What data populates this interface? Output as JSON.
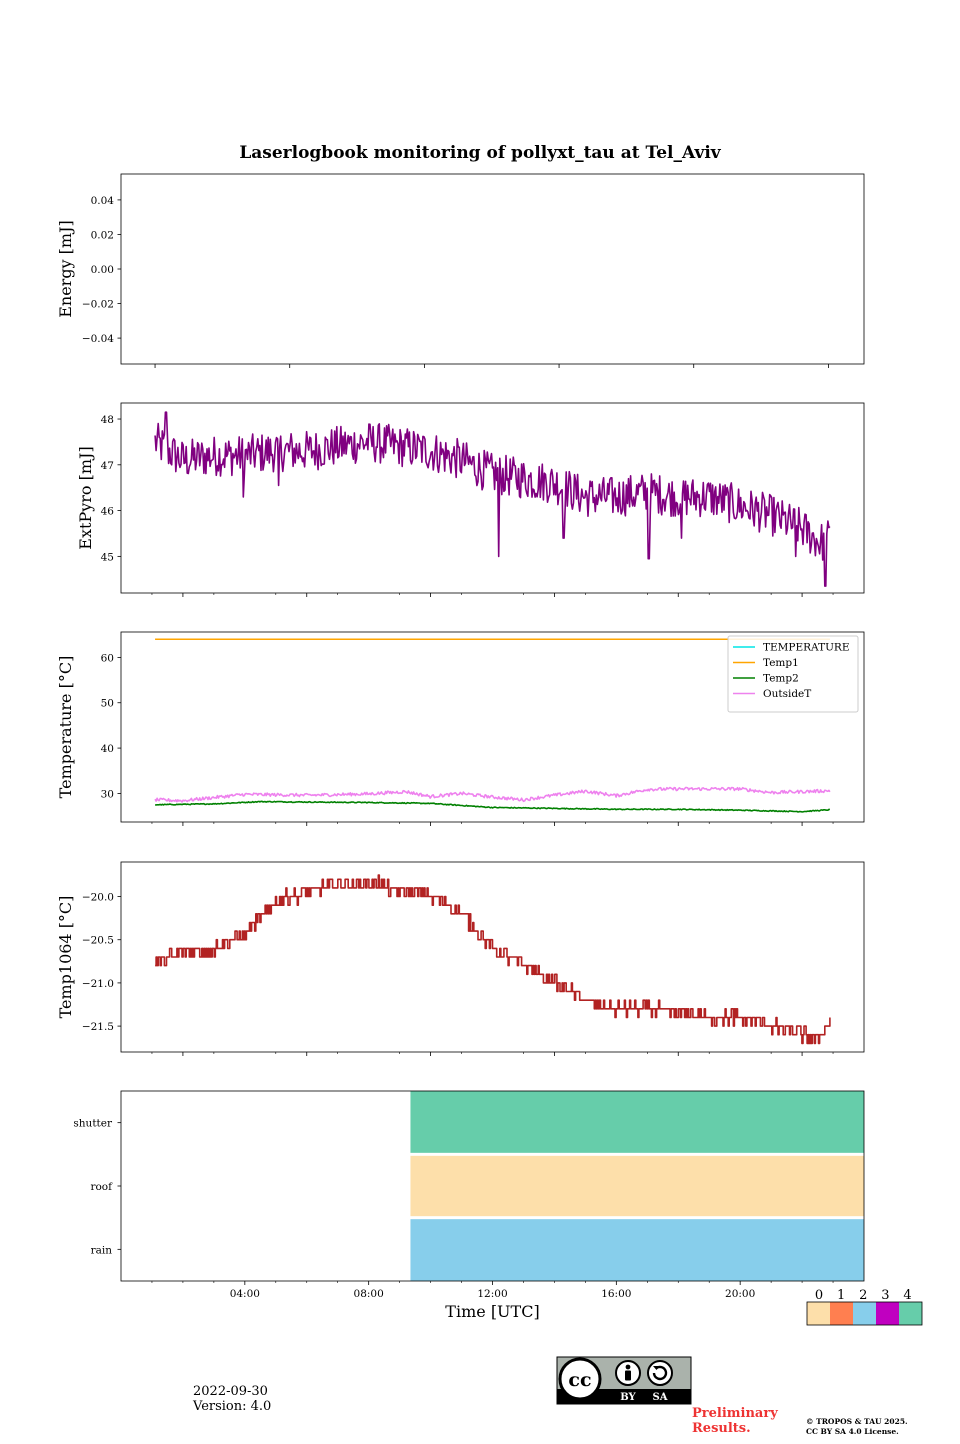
{
  "title": "Laserlogbook monitoring of pollyxt_tau at Tel_Aviv",
  "footer": {
    "date": "2022-09-30",
    "version": "Version: 4.0",
    "preliminary_line1": "Preliminary",
    "preliminary_line2": "Results.",
    "copyright_line1": "© TROPOS & TAU 2025.",
    "copyright_line2": "CC BY SA 4.0 License.",
    "license_badge": {
      "icon": "cc-by-sa-icon",
      "labels": [
        "BY",
        "SA"
      ]
    }
  },
  "chart_data": [
    {
      "type": "line",
      "ylabel": "Energy [mJ]",
      "ylim": [
        -0.055,
        0.055
      ],
      "yticks": [
        "0.04",
        "0.02",
        "0.00",
        "−0.02",
        "−0.04"
      ],
      "ytick_values": [
        0.04,
        0.02,
        0.0,
        -0.02,
        -0.04
      ],
      "series": []
    },
    {
      "type": "line",
      "ylabel": "ExtPyro [mJ]",
      "ylim": [
        44.2,
        48.35
      ],
      "yticks": [
        "48",
        "47",
        "46",
        "45"
      ],
      "ytick_values": [
        48,
        47,
        46,
        45
      ],
      "x_range_hours": [
        1.1,
        22.9
      ],
      "series": [
        {
          "color": "#800080",
          "profile": [
            [
              1.1,
              47.5
            ],
            [
              2.0,
              47.1
            ],
            [
              3.0,
              47.2
            ],
            [
              4.0,
              47.2
            ],
            [
              5.0,
              47.3
            ],
            [
              6.0,
              47.3
            ],
            [
              7.0,
              47.4
            ],
            [
              8.0,
              47.5
            ],
            [
              9.0,
              47.4
            ],
            [
              10.0,
              47.3
            ],
            [
              11.0,
              47.1
            ],
            [
              12.0,
              46.8
            ],
            [
              13.0,
              46.7
            ],
            [
              14.0,
              46.6
            ],
            [
              15.0,
              46.3
            ],
            [
              16.0,
              46.3
            ],
            [
              17.0,
              46.4
            ],
            [
              18.0,
              46.3
            ],
            [
              19.0,
              46.3
            ],
            [
              20.0,
              46.1
            ],
            [
              21.0,
              45.9
            ],
            [
              22.0,
              45.6
            ],
            [
              22.6,
              45.3
            ],
            [
              22.9,
              45.4
            ]
          ],
          "noise": 0.45,
          "spikes": [
            [
              1.45,
              48.15
            ],
            [
              3.95,
              46.3
            ],
            [
              5.1,
              46.55
            ],
            [
              12.2,
              45.0
            ],
            [
              14.3,
              45.4
            ],
            [
              17.05,
              44.95
            ],
            [
              18.1,
              45.4
            ],
            [
              21.8,
              45.0
            ],
            [
              22.75,
              44.35
            ]
          ]
        }
      ]
    },
    {
      "type": "line",
      "ylabel": "Temperature [°C]",
      "ylim": [
        23.7,
        65.6
      ],
      "yticks": [
        "60",
        "50",
        "40",
        "30"
      ],
      "ytick_values": [
        60,
        50,
        40,
        30
      ],
      "x_range_hours": [
        1.1,
        22.9
      ],
      "legend_position": "top-right",
      "series": [
        {
          "name": "TEMPERATURE",
          "color": "#00e5e5",
          "values": []
        },
        {
          "name": "Temp1",
          "color": "#ffa500",
          "constant": 64.0
        },
        {
          "name": "Temp2",
          "color": "#008000",
          "profile": [
            [
              1.1,
              27.5
            ],
            [
              3.0,
              27.7
            ],
            [
              4.5,
              28.2
            ],
            [
              6.0,
              28.1
            ],
            [
              8.0,
              28.0
            ],
            [
              10.0,
              27.8
            ],
            [
              12.0,
              26.9
            ],
            [
              14.0,
              26.7
            ],
            [
              16.0,
              26.5
            ],
            [
              18.0,
              26.5
            ],
            [
              20.0,
              26.3
            ],
            [
              22.0,
              26.0
            ],
            [
              22.9,
              26.4
            ]
          ],
          "noise": 0.1
        },
        {
          "name": "OutsideT",
          "color": "#ee82ee",
          "profile": [
            [
              1.1,
              28.6
            ],
            [
              2.0,
              28.4
            ],
            [
              4.0,
              29.8
            ],
            [
              6.0,
              29.6
            ],
            [
              8.0,
              29.9
            ],
            [
              9.2,
              30.4
            ],
            [
              10.0,
              29.3
            ],
            [
              11.0,
              30.0
            ],
            [
              12.0,
              29.2
            ],
            [
              13.0,
              28.6
            ],
            [
              14.0,
              29.6
            ],
            [
              15.0,
              30.5
            ],
            [
              16.0,
              29.5
            ],
            [
              17.0,
              30.9
            ],
            [
              18.0,
              31.0
            ],
            [
              20.0,
              31.0
            ],
            [
              21.0,
              30.2
            ],
            [
              22.0,
              30.4
            ],
            [
              22.9,
              30.6
            ]
          ],
          "noise": 0.35
        }
      ]
    },
    {
      "type": "line",
      "ylabel": "Temp1064 [°C]",
      "ylim": [
        -21.8,
        -19.6
      ],
      "yticks": [
        "−20.0",
        "−20.5",
        "−21.0",
        "−21.5"
      ],
      "ytick_values": [
        -20.0,
        -20.5,
        -21.0,
        -21.5
      ],
      "x_range_hours": [
        1.1,
        22.9
      ],
      "series": [
        {
          "color": "#b22222",
          "step": 0.1,
          "profile": [
            [
              1.1,
              -20.75
            ],
            [
              2.0,
              -20.65
            ],
            [
              3.0,
              -20.6
            ],
            [
              4.0,
              -20.45
            ],
            [
              5.0,
              -20.05
            ],
            [
              6.0,
              -19.95
            ],
            [
              7.0,
              -19.85
            ],
            [
              8.0,
              -19.85
            ],
            [
              9.0,
              -19.95
            ],
            [
              10.0,
              -20.0
            ],
            [
              11.0,
              -20.2
            ],
            [
              12.0,
              -20.6
            ],
            [
              13.0,
              -20.8
            ],
            [
              14.0,
              -21.0
            ],
            [
              15.0,
              -21.2
            ],
            [
              16.0,
              -21.3
            ],
            [
              17.0,
              -21.3
            ],
            [
              18.0,
              -21.35
            ],
            [
              19.0,
              -21.4
            ],
            [
              20.0,
              -21.4
            ],
            [
              21.0,
              -21.5
            ],
            [
              22.0,
              -21.6
            ],
            [
              22.5,
              -21.65
            ],
            [
              22.9,
              -21.45
            ]
          ],
          "noise": 0.07,
          "spikes": [
            [
              8.3,
              -19.75
            ]
          ]
        }
      ]
    },
    {
      "type": "heatmap",
      "xlabel": "Time [UTC]",
      "x_range_hours": [
        0,
        24
      ],
      "xticks": [
        "04:00",
        "08:00",
        "12:00",
        "16:00",
        "20:00"
      ],
      "xtick_hours": [
        4,
        8,
        12,
        16,
        20
      ],
      "rows": [
        "shutter",
        "roof",
        "rain"
      ],
      "segments": [
        {
          "row": "shutter",
          "start_hours": 9.35,
          "end_hours": 24,
          "value": 4
        },
        {
          "row": "roof",
          "start_hours": 9.35,
          "end_hours": 24,
          "value": 0
        },
        {
          "row": "rain",
          "start_hours": 9.35,
          "end_hours": 24,
          "value": 2
        }
      ],
      "colorbar": {
        "ticks": [
          "0",
          "1",
          "2",
          "3",
          "4"
        ],
        "colors": [
          "#fddfaa",
          "#ff7f50",
          "#87ceeb",
          "#c000c0",
          "#66cdaa"
        ]
      }
    }
  ]
}
